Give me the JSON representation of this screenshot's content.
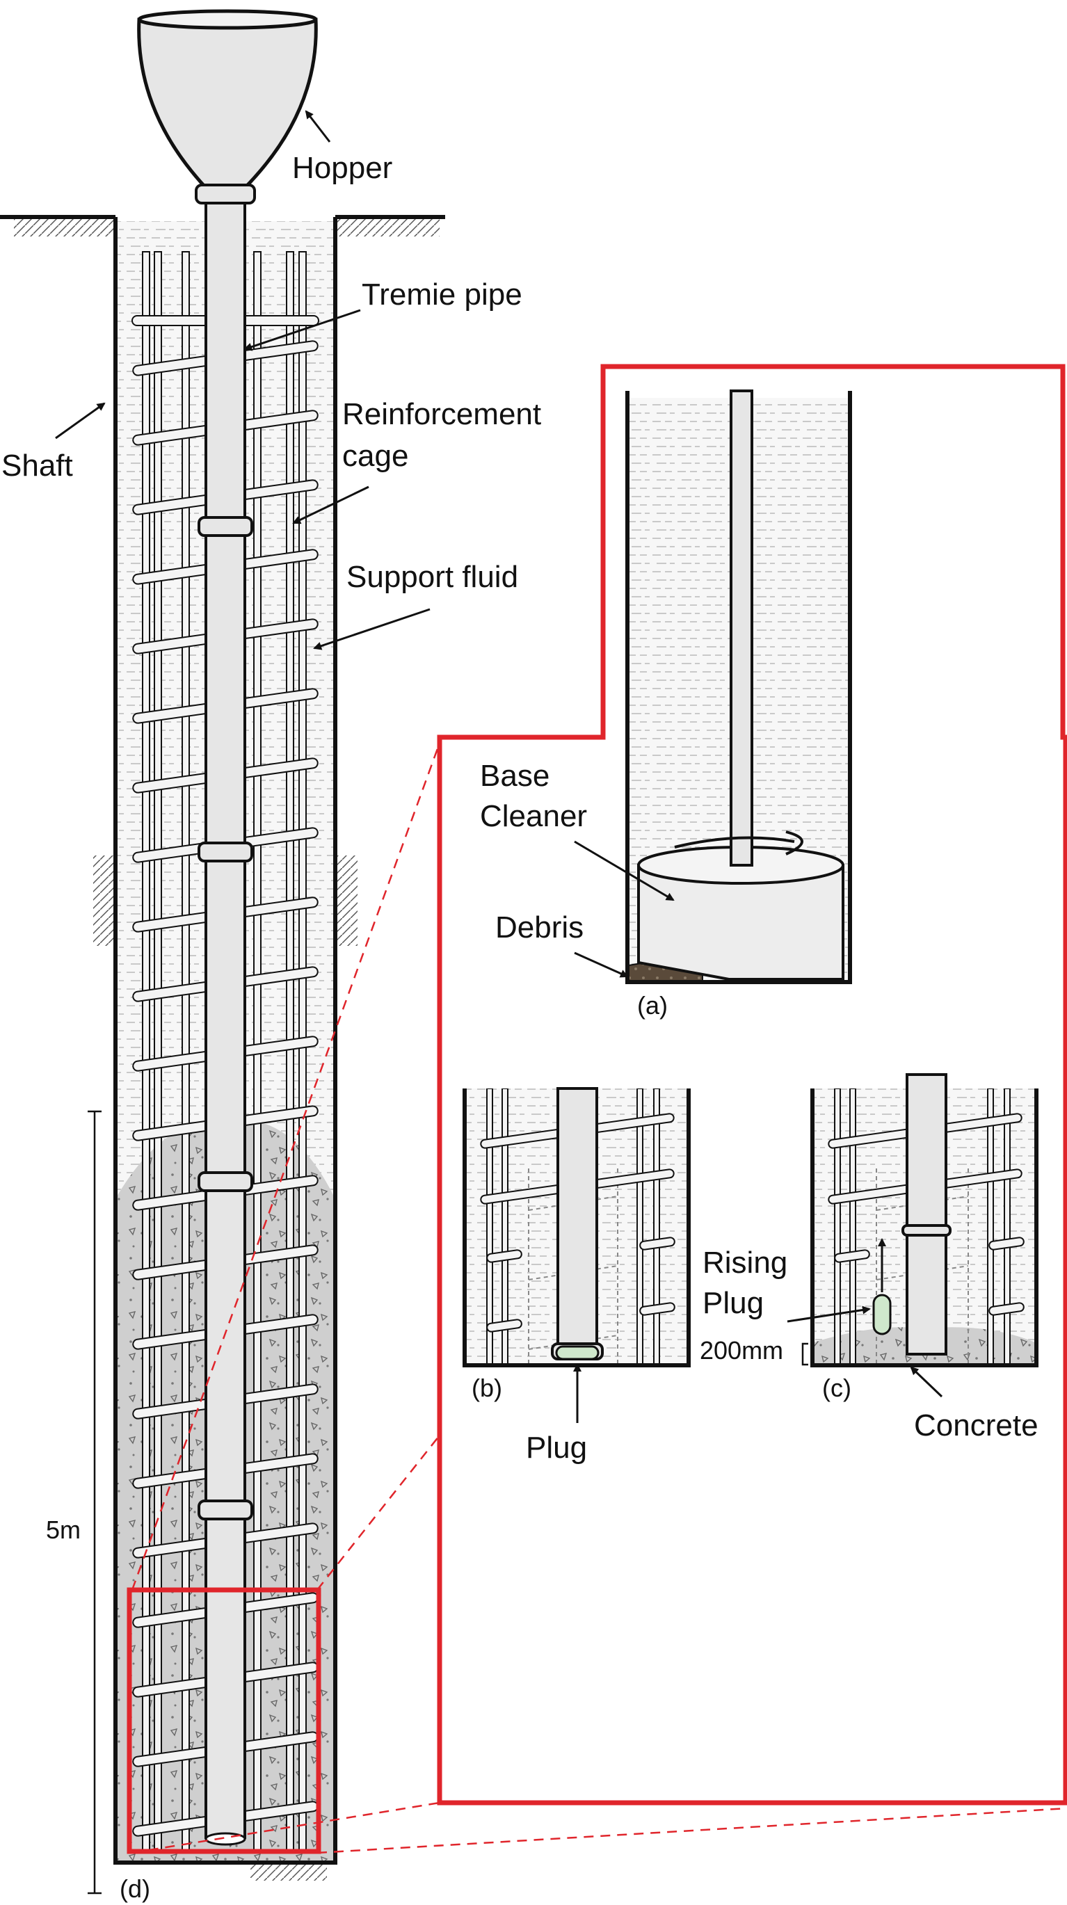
{
  "labels": {
    "hopper": "Hopper",
    "tremie_pipe": "Tremie pipe",
    "reinforcement_cage_line1": "Reinforcement",
    "reinforcement_cage_line2": "cage",
    "support_fluid": "Support fluid",
    "shaft": "Shaft",
    "base_cleaner_line1": "Base",
    "base_cleaner_line2": "Cleaner",
    "debris": "Debris",
    "rising_plug_line1": "Rising",
    "rising_plug_line2": "Plug",
    "plug": "Plug",
    "concrete": "Concrete",
    "dimension_5m": "5m",
    "dimension_200mm": "200mm",
    "panel_a": "(a)",
    "panel_b": "(b)",
    "panel_c": "(c)",
    "panel_d": "(d)"
  },
  "colors": {
    "outline": "#111111",
    "fluid": "#f7f7f7",
    "fluid_dash": "#c9c9c9",
    "concrete": "#cfcfcf",
    "pipe": "#e6e6e6",
    "plug": "#cfe8cc",
    "debris": "#5a4a3a",
    "highlight": "#e0252b"
  }
}
